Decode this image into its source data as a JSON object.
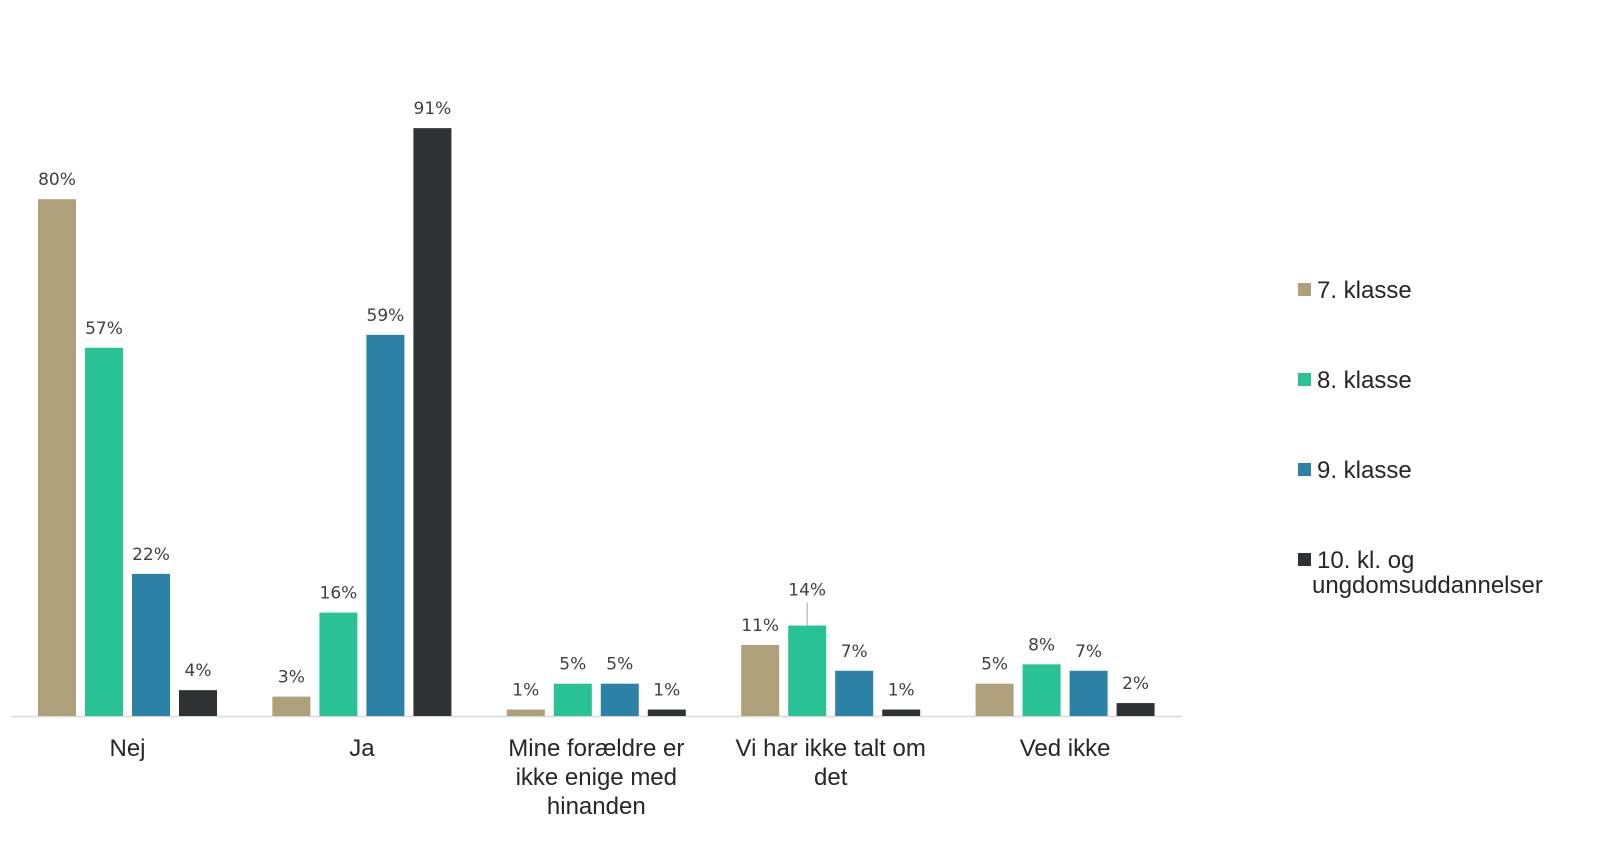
{
  "chart_data": {
    "type": "bar",
    "title": "",
    "xlabel": "",
    "ylabel": "",
    "ylim": [
      0,
      100
    ],
    "grid": false,
    "legend_position": "right",
    "categories": [
      [
        "Nej"
      ],
      [
        "Ja"
      ],
      [
        "Mine forældre er",
        "ikke enige med",
        "hinanden"
      ],
      [
        "Vi har ikke talt om",
        "det"
      ],
      [
        "Ved ikke"
      ]
    ],
    "series": [
      {
        "name": "7. klasse",
        "legend_lines": [
          "7. klasse"
        ],
        "color": "#ADA07A",
        "values": [
          80,
          3,
          1,
          11,
          5
        ],
        "labels": [
          "80%",
          "3%",
          "1%",
          "11%",
          "5%"
        ]
      },
      {
        "name": "8. klasse",
        "legend_lines": [
          "8. klasse"
        ],
        "color": "#29C196",
        "values": [
          57,
          16,
          5,
          14,
          8
        ],
        "labels": [
          "57%",
          "16%",
          "5%",
          "14%",
          "8%"
        ]
      },
      {
        "name": "9. klasse",
        "legend_lines": [
          "9. klasse"
        ],
        "color": "#2C82A6",
        "values": [
          22,
          59,
          5,
          7,
          7
        ],
        "labels": [
          "22%",
          "59%",
          "5%",
          "7%",
          "7%"
        ]
      },
      {
        "name": "10. kl. og ungdomsuddannelser",
        "legend_lines": [
          "10. kl. og",
          "ungdomsuddannelser"
        ],
        "color": "#2E3235",
        "values": [
          4,
          91,
          1,
          1,
          2
        ],
        "labels": [
          "4%",
          "91%",
          "1%",
          "1%",
          "2%"
        ]
      }
    ],
    "leader_lines": [
      {
        "category": 3,
        "series": 1
      }
    ]
  },
  "colors": {
    "axis": "#D9D9D9",
    "leader": "#A6A6A6"
  }
}
